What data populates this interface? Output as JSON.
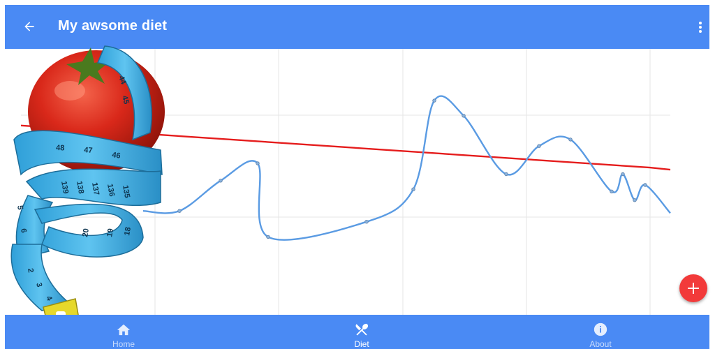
{
  "app_bar": {
    "title": "My awsome diet",
    "back_icon": "arrow-back-icon",
    "menu_icon": "more-vert-icon",
    "color": "#4a8af4"
  },
  "chart_data": {
    "type": "line",
    "series": [
      {
        "values": [
          48,
          62,
          70,
          36,
          43,
          58,
          99,
          92,
          65,
          78,
          81,
          57,
          65,
          53,
          60,
          47
        ],
        "color": "#5a9be3"
      },
      {
        "values": [
          92,
          69
        ],
        "color": "#e51c1c"
      }
    ],
    "grid": true,
    "xlabel": "",
    "ylabel": ""
  },
  "fab": {
    "icon": "add-icon",
    "color": "#f23a3a"
  },
  "bottom_nav": {
    "items": [
      {
        "label": "Home",
        "icon": "home-icon",
        "active": false
      },
      {
        "label": "Diet",
        "icon": "diet-icon",
        "active": true
      },
      {
        "label": "About",
        "icon": "info-icon",
        "active": false
      }
    ]
  },
  "image": {
    "description_icon": "tomato-measuring-tape-icon",
    "tape_numbers": [
      "44",
      "45",
      "46",
      "47",
      "48",
      "139",
      "138",
      "137",
      "136",
      "135",
      "20",
      "19",
      "18",
      "2",
      "3",
      "4",
      "5",
      "6"
    ]
  }
}
